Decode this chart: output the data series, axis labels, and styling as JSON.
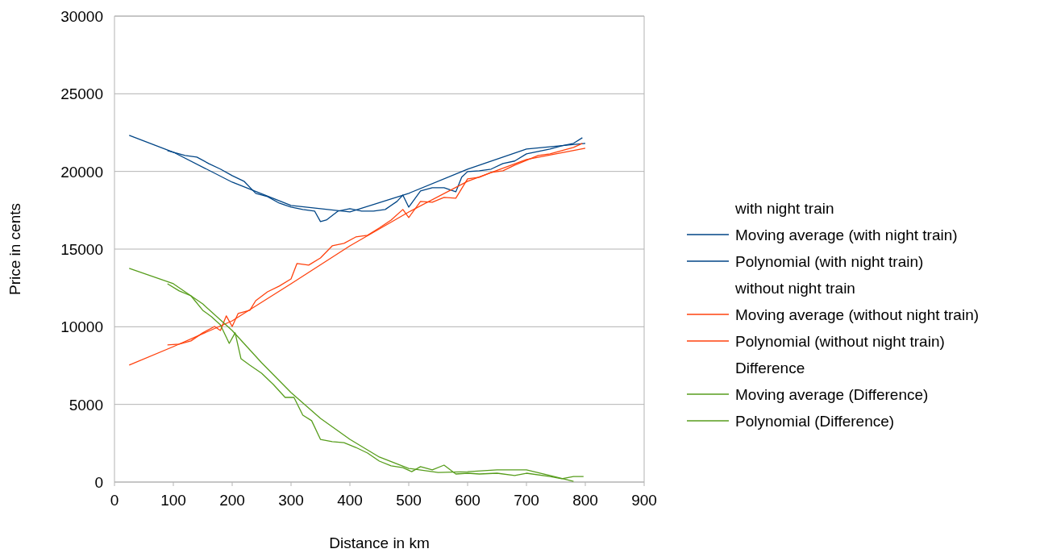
{
  "chart_data": {
    "type": "line",
    "xlabel": "Distance in km",
    "ylabel": "Price in cents",
    "xlim": [
      0,
      900
    ],
    "xticks": [
      0,
      100,
      200,
      300,
      400,
      500,
      600,
      700,
      800,
      900
    ],
    "ylim": [
      0,
      30000
    ],
    "yticks": [
      0,
      5000,
      10000,
      15000,
      20000,
      25000,
      30000
    ],
    "grid": "y",
    "legend": "right",
    "marker": "none",
    "line_style": "solid",
    "annotations": [
      "with night train",
      "without night train",
      "Difference"
    ],
    "series": [
      {
        "name": "Moving average (with night train)",
        "color": "#004586",
        "x": [
          90,
          100,
          120,
          140,
          160,
          180,
          200,
          220,
          240,
          260,
          280,
          300,
          320,
          340,
          350,
          360,
          380,
          400,
          420,
          440,
          460,
          480,
          490,
          500,
          520,
          540,
          560,
          580,
          590,
          600,
          620,
          640,
          660,
          680,
          700,
          720,
          740,
          760,
          780,
          795
        ],
        "values": [
          21340,
          21240,
          21030,
          20920,
          20510,
          20150,
          19730,
          19370,
          18590,
          18380,
          17960,
          17700,
          17550,
          17450,
          16770,
          16870,
          17450,
          17600,
          17450,
          17450,
          17550,
          18070,
          18480,
          17700,
          18740,
          18950,
          18950,
          18690,
          19630,
          19990,
          20040,
          20150,
          20510,
          20670,
          21130,
          21290,
          21440,
          21650,
          21810,
          22170
        ]
      },
      {
        "name": "Polynomial (with night train)",
        "color": "#004586",
        "x": [
          25,
          100,
          200,
          300,
          400,
          500,
          600,
          700,
          800
        ],
        "values": [
          22330,
          21240,
          19310,
          17810,
          17390,
          18590,
          20150,
          21440,
          21810
        ]
      },
      {
        "name": "Moving average (without night train)",
        "color": "#ff420e",
        "x": [
          90,
          110,
          130,
          150,
          170,
          180,
          190,
          200,
          210,
          230,
          240,
          260,
          280,
          300,
          310,
          330,
          350,
          370,
          390,
          410,
          430,
          450,
          470,
          490,
          500,
          520,
          540,
          560,
          580,
          600,
          620,
          640,
          660,
          680,
          700,
          720,
          740,
          760,
          780,
          795
        ],
        "values": [
          8830,
          8880,
          9090,
          9610,
          10020,
          9760,
          10700,
          10020,
          10850,
          11060,
          11680,
          12250,
          12620,
          13080,
          14070,
          13970,
          14430,
          15210,
          15370,
          15780,
          15890,
          16360,
          16870,
          17550,
          17030,
          18070,
          18020,
          18330,
          18280,
          19520,
          19630,
          19940,
          20040,
          20400,
          20720,
          21030,
          21130,
          21340,
          21550,
          21810
        ]
      },
      {
        "name": "Polynomial (without night train)",
        "color": "#ff420e",
        "x": [
          25,
          100,
          200,
          300,
          400,
          500,
          600,
          700,
          800
        ],
        "values": [
          7530,
          8720,
          10380,
          12770,
          15210,
          17390,
          19370,
          20770,
          21500
        ]
      },
      {
        "name": "Moving average (Difference)",
        "color": "#579d1c",
        "x": [
          90,
          110,
          130,
          150,
          165,
          180,
          195,
          205,
          215,
          230,
          250,
          270,
          290,
          305,
          320,
          335,
          350,
          370,
          390,
          410,
          430,
          450,
          470,
          490,
          505,
          520,
          540,
          560,
          580,
          600,
          620,
          650,
          680,
          700,
          740,
          760,
          780,
          797
        ],
        "values": [
          12770,
          12310,
          11990,
          11060,
          10640,
          10120,
          8930,
          9610,
          7940,
          7530,
          7010,
          6280,
          5450,
          5450,
          4310,
          3950,
          2750,
          2600,
          2540,
          2230,
          1870,
          1350,
          1040,
          930,
          670,
          990,
          780,
          1090,
          520,
          570,
          520,
          570,
          420,
          570,
          360,
          210,
          360,
          360
        ]
      },
      {
        "name": "Polynomial (Difference)",
        "color": "#579d1c",
        "x": [
          25,
          100,
          150,
          200,
          250,
          300,
          350,
          400,
          450,
          500,
          550,
          600,
          650,
          700,
          740,
          780
        ],
        "values": [
          13760,
          12770,
          11470,
          9760,
          7680,
          5760,
          4100,
          2750,
          1610,
          880,
          620,
          670,
          780,
          780,
          420,
          50
        ]
      }
    ]
  }
}
